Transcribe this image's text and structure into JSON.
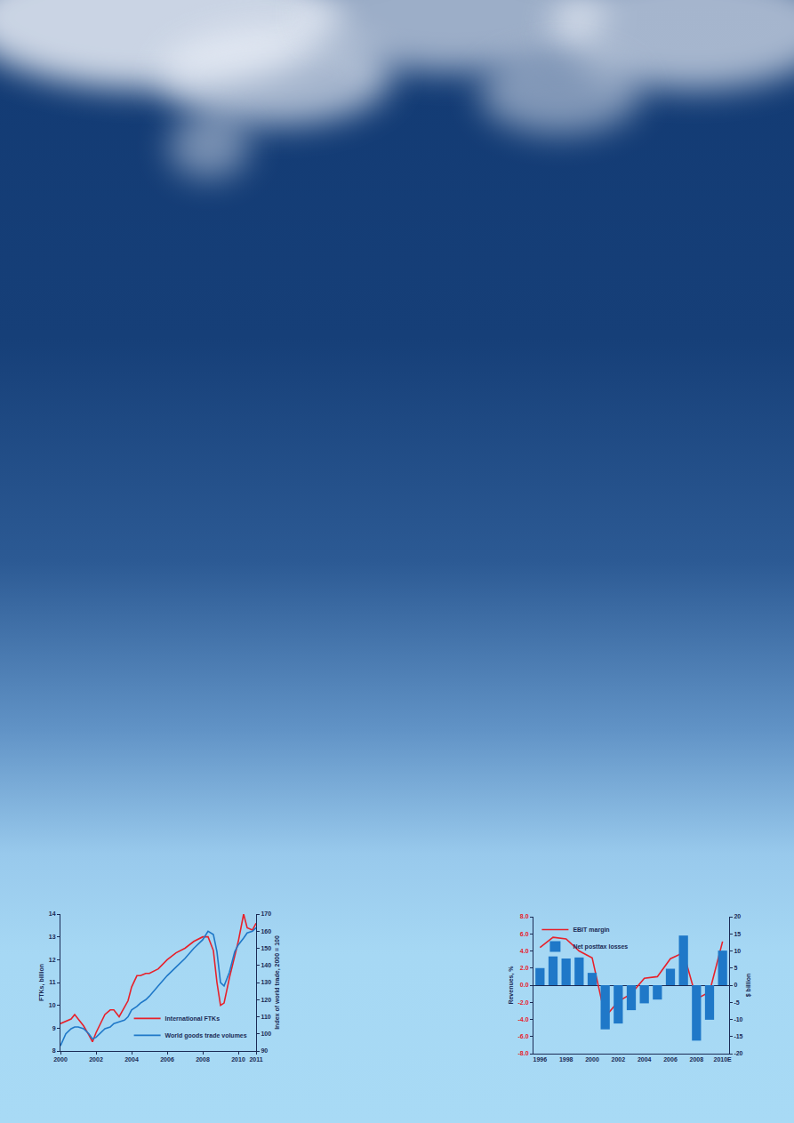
{
  "chart_data": [
    {
      "type": "line",
      "x": [
        2000.0,
        2000.3,
        2000.6,
        2000.8,
        2001.0,
        2001.3,
        2001.6,
        2001.8,
        2002.0,
        2002.3,
        2002.5,
        2002.8,
        2003.0,
        2003.3,
        2003.6,
        2003.8,
        2004.0,
        2004.3,
        2004.5,
        2004.8,
        2005.0,
        2005.5,
        2006.0,
        2006.5,
        2007.0,
        2007.5,
        2008.0,
        2008.3,
        2008.6,
        2008.8,
        2009.0,
        2009.2,
        2009.5,
        2009.8,
        2010.0,
        2010.3,
        2010.5,
        2010.8,
        2011.0
      ],
      "xlim": [
        2000,
        2011
      ],
      "xticks": [
        2000,
        2002,
        2004,
        2006,
        2008,
        2010,
        2011
      ],
      "ylabel": "FTKs, billion",
      "ylim": [
        8,
        14
      ],
      "yticks": [
        8,
        9,
        10,
        11,
        12,
        13,
        14
      ],
      "y2label": "Index of world trade, 2000 = 100",
      "y2lim": [
        90,
        170
      ],
      "y2ticks": [
        90,
        100,
        110,
        120,
        130,
        140,
        150,
        160,
        170
      ],
      "legend": "bottom right",
      "series": [
        {
          "name": "International FTKs",
          "color": "#e8202a",
          "axis": "y",
          "values": [
            9.2,
            9.3,
            9.4,
            9.6,
            9.4,
            9.1,
            8.7,
            8.4,
            8.8,
            9.3,
            9.6,
            9.8,
            9.8,
            9.5,
            9.9,
            10.2,
            10.8,
            11.3,
            11.3,
            11.4,
            11.4,
            11.6,
            12.0,
            12.3,
            12.5,
            12.8,
            13.0,
            13.0,
            12.4,
            11.0,
            10.0,
            10.1,
            11.2,
            12.2,
            12.8,
            14.0,
            13.4,
            13.3,
            13.6
          ]
        },
        {
          "name": "World goods trade volumes",
          "color": "#1f78c8",
          "axis": "y2",
          "values": [
            93,
            100,
            103,
            104,
            104,
            103,
            100,
            97,
            98,
            101,
            103,
            104,
            106,
            107,
            108,
            110,
            114,
            116,
            118,
            120,
            122,
            128,
            134,
            139,
            144,
            150,
            155,
            160,
            158,
            148,
            130,
            128,
            136,
            148,
            152,
            156,
            159,
            160,
            162
          ]
        }
      ]
    },
    {
      "type": "bar",
      "categories": [
        "1996",
        null,
        "1998",
        null,
        "2000",
        null,
        "2002",
        null,
        "2004",
        null,
        "2006",
        null,
        "2008",
        null,
        "2010E"
      ],
      "ylabel": "Revenues, %",
      "ylim": [
        -8,
        8
      ],
      "yticks": [
        {
          "value": -8,
          "label": "-8.0"
        },
        {
          "value": -6,
          "label": "-6.0"
        },
        {
          "value": -4,
          "label": "-4.0"
        },
        {
          "value": -2,
          "label": "-2.0"
        },
        {
          "value": 0,
          "label": "0.0"
        },
        {
          "value": 2,
          "label": "2.0"
        },
        {
          "value": 4,
          "label": "4.0"
        },
        {
          "value": 6,
          "label": "6.0"
        },
        {
          "value": 8,
          "label": "8.0"
        }
      ],
      "y2label": "$ billion",
      "y2lim": [
        -20,
        20
      ],
      "y2ticks": [
        -20,
        -15,
        -10,
        -5,
        0,
        5,
        10,
        15,
        20
      ],
      "legend": "top left",
      "series": [
        {
          "name": "EBIT margin",
          "type": "line",
          "color": "#e8202a",
          "axis": "y",
          "values": [
            4.4,
            5.6,
            5.4,
            4.0,
            3.2,
            -3.7,
            -1.9,
            -1.0,
            0.8,
            1.0,
            3.1,
            3.8,
            -1.6,
            -0.8,
            5.1
          ]
        },
        {
          "name": "Net posttax losses",
          "type": "bar",
          "color": "#1f78c8",
          "axis": "y2",
          "values": [
            5.0,
            8.4,
            7.8,
            8.1,
            3.6,
            -12.9,
            -11.2,
            -7.3,
            -5.3,
            -4.2,
            4.8,
            14.5,
            -16.2,
            -10.1,
            10.1
          ]
        }
      ]
    }
  ]
}
